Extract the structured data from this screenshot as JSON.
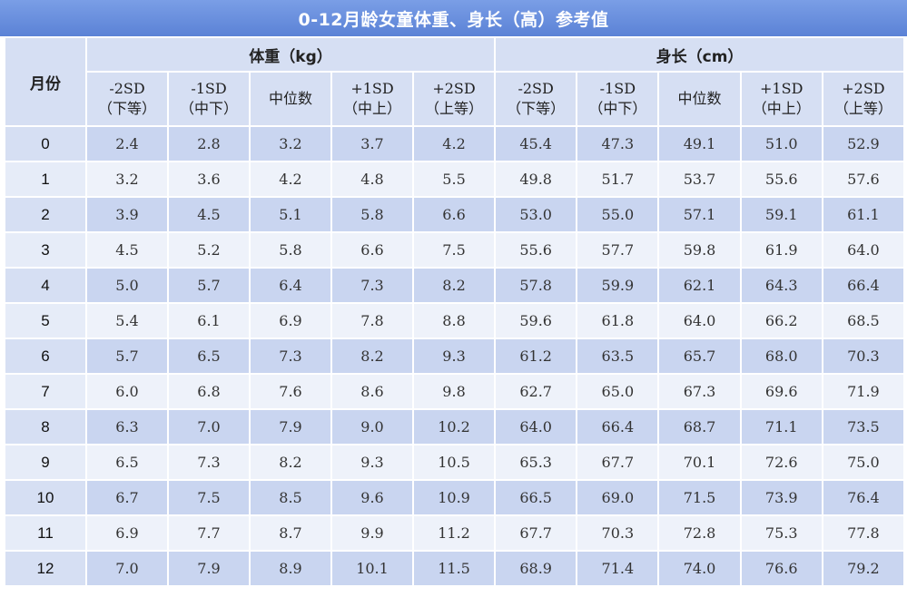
{
  "title": "0-12月龄女童体重、身长（高）参考值",
  "header": {
    "month_label": "月份",
    "weight_group": "体重（kg）",
    "length_group": "身长（cm）",
    "columns": [
      {
        "sd": "-2SD",
        "tier": "（下等）"
      },
      {
        "sd": "-1SD",
        "tier": "（中下）"
      },
      {
        "sd": "中位数",
        "tier": ""
      },
      {
        "sd": "+1SD",
        "tier": "（中上）"
      },
      {
        "sd": "+2SD",
        "tier": "（上等）"
      }
    ]
  },
  "rows": [
    {
      "month": "0",
      "weight": [
        "2.4",
        "2.8",
        "3.2",
        "3.7",
        "4.2"
      ],
      "length": [
        "45.4",
        "47.3",
        "49.1",
        "51.0",
        "52.9"
      ]
    },
    {
      "month": "1",
      "weight": [
        "3.2",
        "3.6",
        "4.2",
        "4.8",
        "5.5"
      ],
      "length": [
        "49.8",
        "51.7",
        "53.7",
        "55.6",
        "57.6"
      ]
    },
    {
      "month": "2",
      "weight": [
        "3.9",
        "4.5",
        "5.1",
        "5.8",
        "6.6"
      ],
      "length": [
        "53.0",
        "55.0",
        "57.1",
        "59.1",
        "61.1"
      ]
    },
    {
      "month": "3",
      "weight": [
        "4.5",
        "5.2",
        "5.8",
        "6.6",
        "7.5"
      ],
      "length": [
        "55.6",
        "57.7",
        "59.8",
        "61.9",
        "64.0"
      ]
    },
    {
      "month": "4",
      "weight": [
        "5.0",
        "5.7",
        "6.4",
        "7.3",
        "8.2"
      ],
      "length": [
        "57.8",
        "59.9",
        "62.1",
        "64.3",
        "66.4"
      ]
    },
    {
      "month": "5",
      "weight": [
        "5.4",
        "6.1",
        "6.9",
        "7.8",
        "8.8"
      ],
      "length": [
        "59.6",
        "61.8",
        "64.0",
        "66.2",
        "68.5"
      ]
    },
    {
      "month": "6",
      "weight": [
        "5.7",
        "6.5",
        "7.3",
        "8.2",
        "9.3"
      ],
      "length": [
        "61.2",
        "63.5",
        "65.7",
        "68.0",
        "70.3"
      ]
    },
    {
      "month": "7",
      "weight": [
        "6.0",
        "6.8",
        "7.6",
        "8.6",
        "9.8"
      ],
      "length": [
        "62.7",
        "65.0",
        "67.3",
        "69.6",
        "71.9"
      ]
    },
    {
      "month": "8",
      "weight": [
        "6.3",
        "7.0",
        "7.9",
        "9.0",
        "10.2"
      ],
      "length": [
        "64.0",
        "66.4",
        "68.7",
        "71.1",
        "73.5"
      ]
    },
    {
      "month": "9",
      "weight": [
        "6.5",
        "7.3",
        "8.2",
        "9.3",
        "10.5"
      ],
      "length": [
        "65.3",
        "67.7",
        "70.1",
        "72.6",
        "75.0"
      ]
    },
    {
      "month": "10",
      "weight": [
        "6.7",
        "7.5",
        "8.5",
        "9.6",
        "10.9"
      ],
      "length": [
        "66.5",
        "69.0",
        "71.5",
        "73.9",
        "76.4"
      ]
    },
    {
      "month": "11",
      "weight": [
        "6.9",
        "7.7",
        "8.7",
        "9.9",
        "11.2"
      ],
      "length": [
        "67.7",
        "70.3",
        "72.8",
        "75.3",
        "77.8"
      ]
    },
    {
      "month": "12",
      "weight": [
        "7.0",
        "7.9",
        "8.9",
        "10.1",
        "11.5"
      ],
      "length": [
        "68.9",
        "71.4",
        "74.0",
        "76.6",
        "79.2"
      ]
    }
  ]
}
